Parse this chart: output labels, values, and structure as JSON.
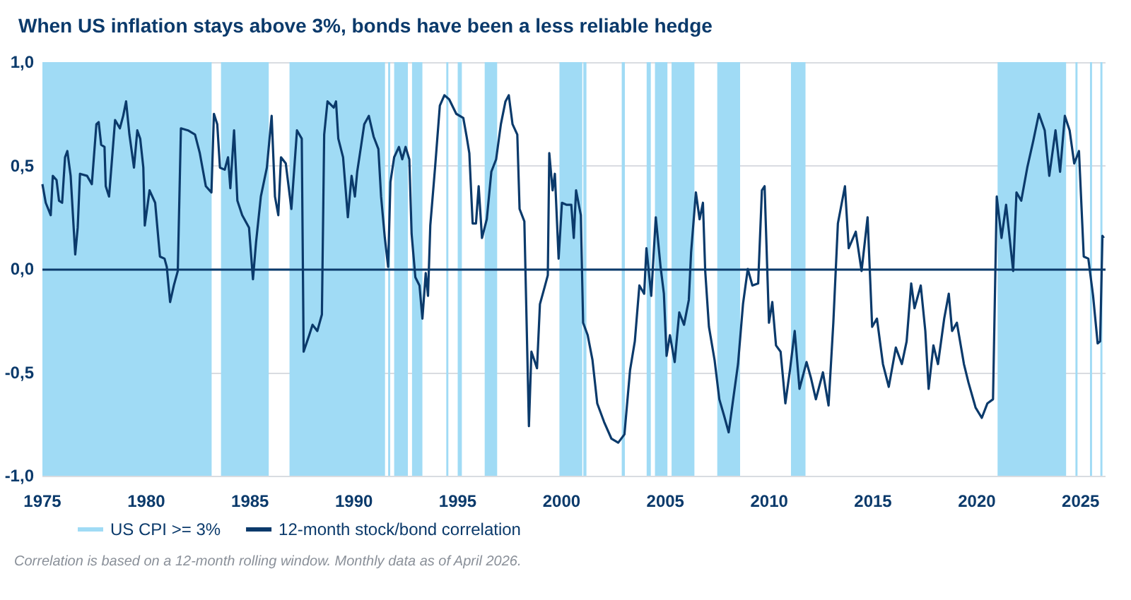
{
  "chart_data": {
    "type": "line",
    "title": "When US inflation stays above 3%, bonds have been a less reliable hedge",
    "annotations": [
      "Correlation is based on a 12-month rolling window. Monthly data as of April 2026."
    ],
    "x": [
      1975.0,
      1975.16,
      1975.4,
      1975.5,
      1975.68,
      1975.8,
      1975.95,
      1976.09,
      1976.2,
      1976.36,
      1976.58,
      1976.7,
      1976.81,
      1977.15,
      1977.38,
      1977.6,
      1977.71,
      1977.83,
      1977.99,
      1978.05,
      1978.21,
      1978.39,
      1978.5,
      1978.73,
      1978.89,
      1979.03,
      1979.19,
      1979.41,
      1979.57,
      1979.71,
      1979.86,
      1979.93,
      1980.16,
      1980.43,
      1980.66,
      1980.88,
      1980.99,
      1981.15,
      1981.33,
      1981.52,
      1981.67,
      1982.01,
      1982.35,
      1982.58,
      1982.87,
      1983.14,
      1983.26,
      1983.42,
      1983.55,
      1983.78,
      1983.94,
      1984.05,
      1984.23,
      1984.39,
      1984.62,
      1984.95,
      1985.14,
      1985.29,
      1985.52,
      1985.81,
      1986.04,
      1986.2,
      1986.36,
      1986.49,
      1986.72,
      1986.99,
      1987.26,
      1987.49,
      1987.58,
      1987.85,
      1988.01,
      1988.24,
      1988.46,
      1988.57,
      1988.73,
      1989.03,
      1989.14,
      1989.25,
      1989.48,
      1989.71,
      1989.89,
      1990.05,
      1990.16,
      1990.34,
      1990.5,
      1990.72,
      1990.95,
      1991.18,
      1991.31,
      1991.49,
      1991.65,
      1991.76,
      1991.94,
      1992.17,
      1992.33,
      1992.49,
      1992.67,
      1992.78,
      1992.96,
      1993.16,
      1993.3,
      1993.46,
      1993.57,
      1993.68,
      1993.91,
      1994.14,
      1994.36,
      1994.59,
      1994.93,
      1995.27,
      1995.43,
      1995.56,
      1995.72,
      1995.88,
      1996.01,
      1996.17,
      1996.4,
      1996.62,
      1996.85,
      1997.08,
      1997.3,
      1997.46,
      1997.64,
      1997.87,
      1997.98,
      1998.21,
      1998.43,
      1998.55,
      1998.82,
      1998.96,
      1999.18,
      1999.34,
      1999.41,
      1999.57,
      1999.68,
      1999.86,
      2000.02,
      2000.25,
      2000.47,
      2000.59,
      2000.7,
      2000.93,
      2001.04,
      2001.26,
      2001.49,
      2001.72,
      2002.05,
      2002.4,
      2002.73,
      2003.03,
      2003.3,
      2003.53,
      2003.75,
      2003.98,
      2004.09,
      2004.32,
      2004.54,
      2004.77,
      2004.93,
      2005.06,
      2005.22,
      2005.45,
      2005.67,
      2005.9,
      2006.13,
      2006.24,
      2006.47,
      2006.65,
      2006.81,
      2006.92,
      2007.1,
      2007.37,
      2007.6,
      2007.83,
      2008.05,
      2008.28,
      2008.5,
      2008.74,
      2008.97,
      2009.19,
      2009.47,
      2009.65,
      2009.78,
      2009.99,
      2010.15,
      2010.33,
      2010.55,
      2010.78,
      2011.0,
      2011.23,
      2011.46,
      2011.8,
      2012.02,
      2012.25,
      2012.59,
      2012.86,
      2013.09,
      2013.31,
      2013.65,
      2013.83,
      2014.17,
      2014.45,
      2014.74,
      2014.96,
      2015.19,
      2015.48,
      2015.76,
      2016.1,
      2016.39,
      2016.62,
      2016.84,
      2017.0,
      2017.3,
      2017.52,
      2017.68,
      2017.91,
      2018.13,
      2018.43,
      2018.65,
      2018.81,
      2019.04,
      2019.38,
      2019.6,
      2019.94,
      2020.24,
      2020.51,
      2020.78,
      2020.96,
      2021.19,
      2021.41,
      2021.75,
      2021.91,
      2022.14,
      2022.43,
      2022.72,
      2022.99,
      2023.27,
      2023.49,
      2023.79,
      2024.01,
      2024.24,
      2024.47,
      2024.69,
      2024.92,
      2025.15,
      2025.37,
      2025.6,
      2025.82,
      2025.94,
      2026.05,
      2026.12
    ],
    "series": [
      {
        "name": "12-month stock/bond correlation",
        "color": "#0b3a6b",
        "values": [
          0.41,
          0.32,
          0.26,
          0.45,
          0.43,
          0.33,
          0.32,
          0.54,
          0.57,
          0.45,
          0.07,
          0.2,
          0.46,
          0.45,
          0.41,
          0.7,
          0.71,
          0.6,
          0.59,
          0.4,
          0.35,
          0.58,
          0.72,
          0.68,
          0.74,
          0.81,
          0.65,
          0.49,
          0.67,
          0.63,
          0.49,
          0.21,
          0.38,
          0.32,
          0.06,
          0.05,
          0.01,
          -0.16,
          -0.08,
          -0.01,
          0.68,
          0.67,
          0.65,
          0.56,
          0.4,
          0.37,
          0.75,
          0.7,
          0.49,
          0.48,
          0.54,
          0.39,
          0.67,
          0.33,
          0.26,
          0.2,
          -0.05,
          0.13,
          0.35,
          0.49,
          0.74,
          0.35,
          0.26,
          0.54,
          0.51,
          0.29,
          0.67,
          0.63,
          -0.4,
          -0.32,
          -0.27,
          -0.3,
          -0.22,
          0.65,
          0.81,
          0.78,
          0.81,
          0.63,
          0.54,
          0.25,
          0.45,
          0.35,
          0.47,
          0.59,
          0.7,
          0.74,
          0.64,
          0.58,
          0.35,
          0.15,
          0.01,
          0.42,
          0.54,
          0.59,
          0.53,
          0.59,
          0.53,
          0.17,
          -0.04,
          -0.08,
          -0.24,
          -0.02,
          -0.13,
          0.21,
          0.49,
          0.79,
          0.84,
          0.82,
          0.75,
          0.73,
          0.64,
          0.56,
          0.22,
          0.22,
          0.4,
          0.15,
          0.24,
          0.47,
          0.53,
          0.7,
          0.81,
          0.84,
          0.7,
          0.65,
          0.29,
          0.23,
          -0.76,
          -0.4,
          -0.48,
          -0.17,
          -0.09,
          -0.03,
          0.56,
          0.38,
          0.46,
          0.05,
          0.32,
          0.31,
          0.31,
          0.15,
          0.38,
          0.26,
          -0.26,
          -0.32,
          -0.44,
          -0.65,
          -0.74,
          -0.82,
          -0.84,
          -0.8,
          -0.49,
          -0.35,
          -0.08,
          -0.12,
          0.1,
          -0.13,
          0.25,
          0.01,
          -0.12,
          -0.42,
          -0.32,
          -0.45,
          -0.21,
          -0.27,
          -0.15,
          0.08,
          0.37,
          0.24,
          0.32,
          -0.01,
          -0.28,
          -0.44,
          -0.63,
          -0.71,
          -0.79,
          -0.62,
          -0.46,
          -0.17,
          0.0,
          -0.08,
          -0.07,
          0.38,
          0.4,
          -0.26,
          -0.16,
          -0.37,
          -0.4,
          -0.65,
          -0.49,
          -0.3,
          -0.58,
          -0.45,
          -0.53,
          -0.63,
          -0.5,
          -0.66,
          -0.26,
          0.22,
          0.4,
          0.1,
          0.18,
          -0.01,
          0.25,
          -0.28,
          -0.24,
          -0.46,
          -0.57,
          -0.38,
          -0.46,
          -0.35,
          -0.07,
          -0.19,
          -0.08,
          -0.3,
          -0.58,
          -0.37,
          -0.46,
          -0.24,
          -0.12,
          -0.3,
          -0.26,
          -0.46,
          -0.55,
          -0.67,
          -0.72,
          -0.65,
          -0.63,
          0.35,
          0.15,
          0.31,
          -0.01,
          0.37,
          0.33,
          0.49,
          0.62,
          0.75,
          0.67,
          0.45,
          0.67,
          0.47,
          0.74,
          0.67,
          0.51,
          0.57,
          0.06,
          0.05,
          -0.13,
          -0.36,
          -0.35,
          0.16,
          0.15
        ]
      }
    ],
    "bands": [
      {
        "axis": "x",
        "from": 1975.0,
        "to": 1983.15,
        "label": "US CPI >= 3%",
        "color": "#a0dbf5"
      },
      {
        "axis": "x",
        "from": 1983.6,
        "to": 1985.9,
        "color": "#a0dbf5"
      },
      {
        "axis": "x",
        "from": 1986.9,
        "to": 1991.5,
        "color": "#a0dbf5"
      },
      {
        "axis": "x",
        "from": 1991.65,
        "to": 1991.75,
        "color": "#a0dbf5"
      },
      {
        "axis": "x",
        "from": 1991.94,
        "to": 1992.6,
        "color": "#a0dbf5"
      },
      {
        "axis": "x",
        "from": 1992.8,
        "to": 1993.3,
        "color": "#a0dbf5"
      },
      {
        "axis": "x",
        "from": 1994.45,
        "to": 1994.55,
        "color": "#a0dbf5"
      },
      {
        "axis": "x",
        "from": 1995.0,
        "to": 1995.2,
        "color": "#a0dbf5"
      },
      {
        "axis": "x",
        "from": 1996.3,
        "to": 1996.9,
        "color": "#a0dbf5"
      },
      {
        "axis": "x",
        "from": 1999.9,
        "to": 2001.0,
        "color": "#a0dbf5"
      },
      {
        "axis": "x",
        "from": 2001.05,
        "to": 2001.2,
        "color": "#a0dbf5"
      },
      {
        "axis": "x",
        "from": 2002.9,
        "to": 2003.05,
        "color": "#a0dbf5"
      },
      {
        "axis": "x",
        "from": 2004.1,
        "to": 2004.3,
        "color": "#a0dbf5"
      },
      {
        "axis": "x",
        "from": 2004.5,
        "to": 2005.1,
        "color": "#a0dbf5"
      },
      {
        "axis": "x",
        "from": 2005.3,
        "to": 2006.4,
        "color": "#a0dbf5"
      },
      {
        "axis": "x",
        "from": 2007.5,
        "to": 2008.6,
        "color": "#a0dbf5"
      },
      {
        "axis": "x",
        "from": 2011.05,
        "to": 2011.75,
        "color": "#a0dbf5"
      },
      {
        "axis": "x",
        "from": 2021.0,
        "to": 2024.3,
        "color": "#a0dbf5"
      },
      {
        "axis": "x",
        "from": 2024.75,
        "to": 2024.85,
        "color": "#a0dbf5"
      },
      {
        "axis": "x",
        "from": 2025.45,
        "to": 2025.55,
        "color": "#a0dbf5"
      },
      {
        "axis": "x",
        "from": 2025.95,
        "to": 2026.05,
        "color": "#a0dbf5"
      }
    ],
    "ref_lines": [
      {
        "axis": "y",
        "value": 0,
        "color": "#0b3a6b"
      }
    ],
    "xlim": [
      1975,
      2026.2
    ],
    "xticks": [
      1975,
      1980,
      1985,
      1990,
      1995,
      2000,
      2005,
      2010,
      2015,
      2020,
      2025
    ],
    "ylim": [
      -1,
      1
    ],
    "yticks": [
      {
        "value": -1,
        "label": "-1,0"
      },
      {
        "value": -0.5,
        "label": "-0,5"
      },
      {
        "value": 0,
        "label": "0,0"
      },
      {
        "value": 0.5,
        "label": "0,5"
      },
      {
        "value": 1,
        "label": "1,0"
      }
    ],
    "grid": "y",
    "marker": "none",
    "legend": "bottom left"
  }
}
